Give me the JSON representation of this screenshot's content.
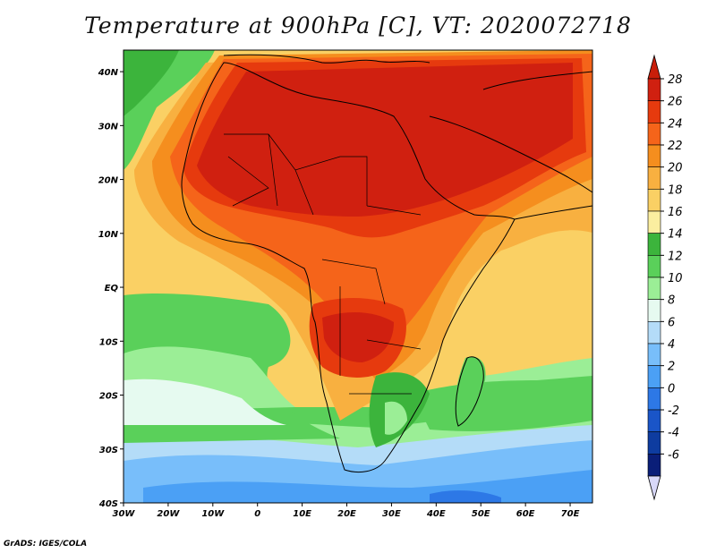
{
  "title": "Temperature at 900hPa [C], VT: 2020072718",
  "credit": "GrADS: IGES/COLA",
  "map": {
    "lon_ticks": [
      "30W",
      "20W",
      "10W",
      "0",
      "10E",
      "20E",
      "30E",
      "40E",
      "50E",
      "60E",
      "70E"
    ],
    "lat_ticks": [
      "40N",
      "30N",
      "20N",
      "10N",
      "EQ",
      "10S",
      "20S",
      "30S",
      "40S"
    ],
    "lon_range": [
      -30,
      75
    ],
    "lat_range": [
      -40,
      44
    ]
  },
  "colorbar": {
    "labels": [
      "28",
      "26",
      "24",
      "22",
      "20",
      "18",
      "16",
      "14",
      "12",
      "10",
      "8",
      "6",
      "4",
      "2",
      "0",
      "-2",
      "-4",
      "-6"
    ],
    "colors": [
      "#d02010",
      "#e63a0e",
      "#f5641a",
      "#f58e1e",
      "#f8b040",
      "#fad064",
      "#fbeea0",
      "#3cb43c",
      "#5ad05a",
      "#9bee96",
      "#e6faf0",
      "#b4dcf8",
      "#78befa",
      "#4ba0f5",
      "#2d78e6",
      "#1a55c8",
      "#0e3ca0",
      "#0a1e78"
    ],
    "over_color": "#c81e0a",
    "under_color": "#d8d8f8"
  }
}
